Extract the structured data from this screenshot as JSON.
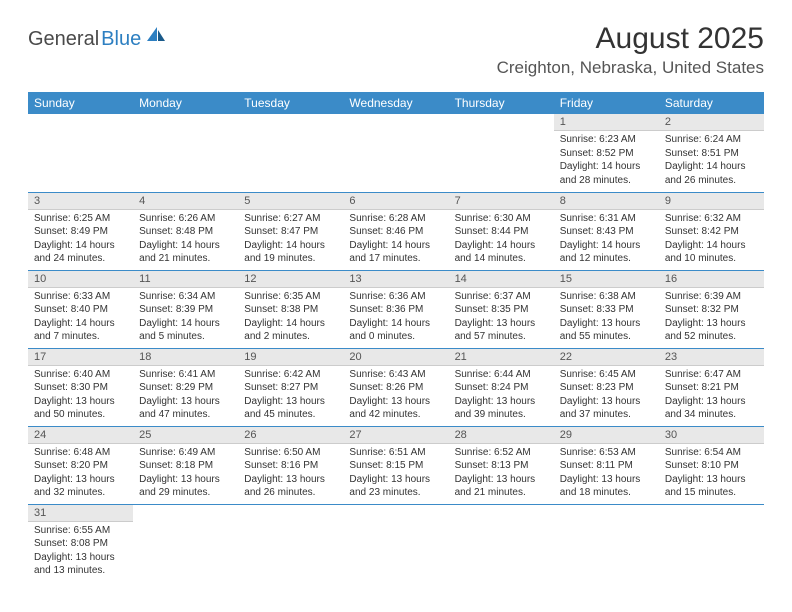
{
  "brand": {
    "part1": "General",
    "part2": "Blue"
  },
  "title": "August 2025",
  "location": "Creighton, Nebraska, United States",
  "colors": {
    "header_bg": "#3b8bc8",
    "header_text": "#ffffff",
    "daynum_bg": "#e8e8e8",
    "week_divider": "#3b8bc8",
    "body_text": "#333333",
    "brand_blue": "#2d7fc1"
  },
  "daynames": [
    "Sunday",
    "Monday",
    "Tuesday",
    "Wednesday",
    "Thursday",
    "Friday",
    "Saturday"
  ],
  "weeks": [
    [
      null,
      null,
      null,
      null,
      null,
      {
        "n": "1",
        "sr": "6:23 AM",
        "ss": "8:52 PM",
        "dl": "14 hours and 28 minutes."
      },
      {
        "n": "2",
        "sr": "6:24 AM",
        "ss": "8:51 PM",
        "dl": "14 hours and 26 minutes."
      }
    ],
    [
      {
        "n": "3",
        "sr": "6:25 AM",
        "ss": "8:49 PM",
        "dl": "14 hours and 24 minutes."
      },
      {
        "n": "4",
        "sr": "6:26 AM",
        "ss": "8:48 PM",
        "dl": "14 hours and 21 minutes."
      },
      {
        "n": "5",
        "sr": "6:27 AM",
        "ss": "8:47 PM",
        "dl": "14 hours and 19 minutes."
      },
      {
        "n": "6",
        "sr": "6:28 AM",
        "ss": "8:46 PM",
        "dl": "14 hours and 17 minutes."
      },
      {
        "n": "7",
        "sr": "6:30 AM",
        "ss": "8:44 PM",
        "dl": "14 hours and 14 minutes."
      },
      {
        "n": "8",
        "sr": "6:31 AM",
        "ss": "8:43 PM",
        "dl": "14 hours and 12 minutes."
      },
      {
        "n": "9",
        "sr": "6:32 AM",
        "ss": "8:42 PM",
        "dl": "14 hours and 10 minutes."
      }
    ],
    [
      {
        "n": "10",
        "sr": "6:33 AM",
        "ss": "8:40 PM",
        "dl": "14 hours and 7 minutes."
      },
      {
        "n": "11",
        "sr": "6:34 AM",
        "ss": "8:39 PM",
        "dl": "14 hours and 5 minutes."
      },
      {
        "n": "12",
        "sr": "6:35 AM",
        "ss": "8:38 PM",
        "dl": "14 hours and 2 minutes."
      },
      {
        "n": "13",
        "sr": "6:36 AM",
        "ss": "8:36 PM",
        "dl": "14 hours and 0 minutes."
      },
      {
        "n": "14",
        "sr": "6:37 AM",
        "ss": "8:35 PM",
        "dl": "13 hours and 57 minutes."
      },
      {
        "n": "15",
        "sr": "6:38 AM",
        "ss": "8:33 PM",
        "dl": "13 hours and 55 minutes."
      },
      {
        "n": "16",
        "sr": "6:39 AM",
        "ss": "8:32 PM",
        "dl": "13 hours and 52 minutes."
      }
    ],
    [
      {
        "n": "17",
        "sr": "6:40 AM",
        "ss": "8:30 PM",
        "dl": "13 hours and 50 minutes."
      },
      {
        "n": "18",
        "sr": "6:41 AM",
        "ss": "8:29 PM",
        "dl": "13 hours and 47 minutes."
      },
      {
        "n": "19",
        "sr": "6:42 AM",
        "ss": "8:27 PM",
        "dl": "13 hours and 45 minutes."
      },
      {
        "n": "20",
        "sr": "6:43 AM",
        "ss": "8:26 PM",
        "dl": "13 hours and 42 minutes."
      },
      {
        "n": "21",
        "sr": "6:44 AM",
        "ss": "8:24 PM",
        "dl": "13 hours and 39 minutes."
      },
      {
        "n": "22",
        "sr": "6:45 AM",
        "ss": "8:23 PM",
        "dl": "13 hours and 37 minutes."
      },
      {
        "n": "23",
        "sr": "6:47 AM",
        "ss": "8:21 PM",
        "dl": "13 hours and 34 minutes."
      }
    ],
    [
      {
        "n": "24",
        "sr": "6:48 AM",
        "ss": "8:20 PM",
        "dl": "13 hours and 32 minutes."
      },
      {
        "n": "25",
        "sr": "6:49 AM",
        "ss": "8:18 PM",
        "dl": "13 hours and 29 minutes."
      },
      {
        "n": "26",
        "sr": "6:50 AM",
        "ss": "8:16 PM",
        "dl": "13 hours and 26 minutes."
      },
      {
        "n": "27",
        "sr": "6:51 AM",
        "ss": "8:15 PM",
        "dl": "13 hours and 23 minutes."
      },
      {
        "n": "28",
        "sr": "6:52 AM",
        "ss": "8:13 PM",
        "dl": "13 hours and 21 minutes."
      },
      {
        "n": "29",
        "sr": "6:53 AM",
        "ss": "8:11 PM",
        "dl": "13 hours and 18 minutes."
      },
      {
        "n": "30",
        "sr": "6:54 AM",
        "ss": "8:10 PM",
        "dl": "13 hours and 15 minutes."
      }
    ],
    [
      {
        "n": "31",
        "sr": "6:55 AM",
        "ss": "8:08 PM",
        "dl": "13 hours and 13 minutes."
      },
      null,
      null,
      null,
      null,
      null,
      null
    ]
  ],
  "labels": {
    "sunrise": "Sunrise:",
    "sunset": "Sunset:",
    "daylight": "Daylight:"
  }
}
